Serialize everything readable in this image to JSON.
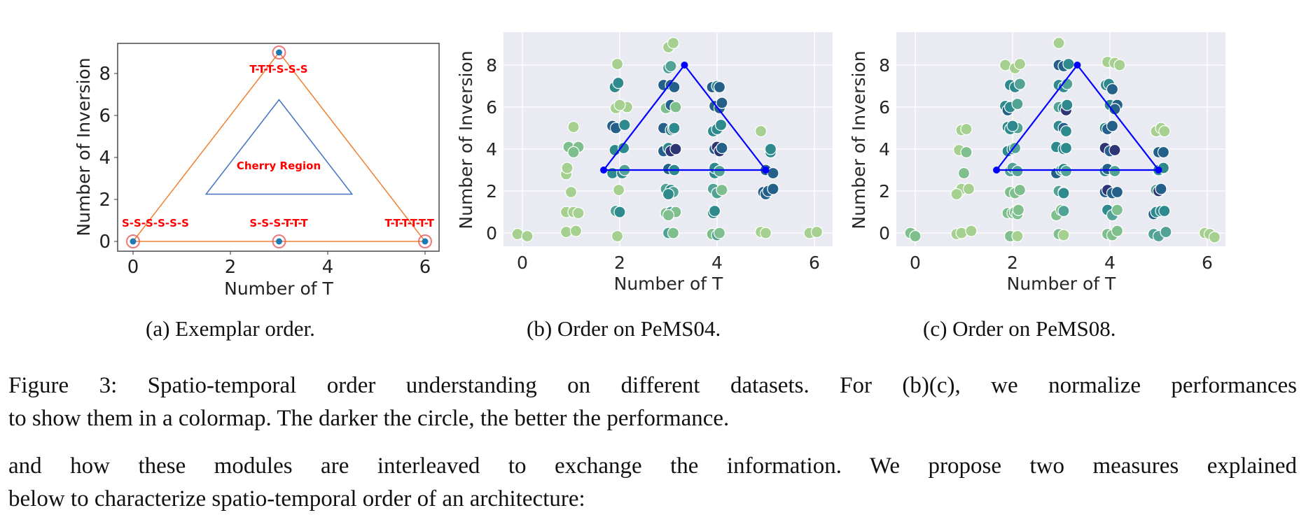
{
  "captions": {
    "a": "(a) Exemplar order.",
    "b": "(b) Order on PeMS04.",
    "c": "(c) Order on PeMS08."
  },
  "figure_caption": {
    "line1": "Figure 3: Spatio-temporal order understanding on different datasets. For (b)(c), we normalize performances",
    "line2": "to show them in a colormap. The darker the circle, the better the performance."
  },
  "body_text": {
    "line1": "and how these modules are interleaved to exchange the information. We propose two measures explained",
    "line2": "below to characterize spatio-temporal order of an architecture:"
  },
  "colors": {
    "panel_bg": "#eaeaf2",
    "grid": "#ffffff",
    "orange": "#f08030",
    "blue_outline": "#4472c4",
    "label_red": "#ff0000",
    "triangle_blue": "#0000ff",
    "colormap": [
      "#a5d090",
      "#7fbf8e",
      "#52a395",
      "#2f8a8e",
      "#25608a",
      "#2d3575"
    ]
  },
  "chart_data": [
    {
      "id": "a",
      "type": "scatter",
      "title": "(a) Exemplar order.",
      "xlabel": "Number of T",
      "ylabel": "Number of Inversion",
      "xticks": [
        0,
        2,
        4,
        6
      ],
      "yticks": [
        0,
        2,
        4,
        6,
        8
      ],
      "xlim": [
        -0.3,
        6.3
      ],
      "ylim": [
        -0.5,
        9.5
      ],
      "grid": false,
      "points": [
        {
          "x": 0,
          "y": 0,
          "label": "S-S-S-S-S-S"
        },
        {
          "x": 3,
          "y": 0,
          "label": "S-S-S-T-T-T"
        },
        {
          "x": 6,
          "y": 0,
          "label": "T-T-T-T-T-T"
        },
        {
          "x": 3,
          "y": 9,
          "label": "T-T-T-S-S-S"
        }
      ],
      "outer_triangle": [
        [
          0,
          0
        ],
        [
          3,
          9
        ],
        [
          6,
          0
        ]
      ],
      "inner_triangle": [
        [
          1.5,
          2.25
        ],
        [
          3,
          6.75
        ],
        [
          4.5,
          2.25
        ]
      ],
      "annotation": "Cherry Region"
    },
    {
      "id": "b",
      "type": "scatter",
      "title": "(b) Order on PeMS04.",
      "xlabel": "Number of T",
      "ylabel": "Number of Inversion",
      "xticks": [
        0,
        2,
        4,
        6
      ],
      "yticks": [
        0,
        2,
        4,
        6,
        8
      ],
      "xlim": [
        -0.4,
        6.4
      ],
      "ylim": [
        -0.6,
        9.6
      ],
      "grid": true,
      "triangle": [
        [
          1.67,
          3
        ],
        [
          3.33,
          8
        ],
        [
          5,
          3
        ]
      ],
      "color_meaning": "darker = better normalized performance (0 light .. 5 dark)",
      "points": [
        [
          -0.1,
          -0.05,
          0
        ],
        [
          0.1,
          -0.15,
          0
        ],
        [
          0.9,
          0.05,
          0
        ],
        [
          1.1,
          0.1,
          0
        ],
        [
          0.9,
          1.0,
          0
        ],
        [
          1.05,
          1.0,
          0
        ],
        [
          1.15,
          0.95,
          0
        ],
        [
          1.0,
          1.95,
          0
        ],
        [
          0.9,
          2.8,
          0
        ],
        [
          0.92,
          3.1,
          0
        ],
        [
          0.95,
          4.1,
          1
        ],
        [
          1.15,
          4.1,
          1
        ],
        [
          1.05,
          3.85,
          1
        ],
        [
          1.05,
          5.05,
          0
        ],
        [
          1.95,
          -0.15,
          0
        ],
        [
          1.92,
          1.05,
          2
        ],
        [
          2.0,
          1.0,
          3
        ],
        [
          1.98,
          2.05,
          0
        ],
        [
          1.85,
          2.85,
          3
        ],
        [
          2.05,
          2.85,
          3
        ],
        [
          2.1,
          3.0,
          2
        ],
        [
          1.9,
          3.95,
          3
        ],
        [
          2.08,
          4.05,
          3
        ],
        [
          1.85,
          5.1,
          4
        ],
        [
          1.92,
          5.0,
          4
        ],
        [
          2.1,
          5.15,
          3
        ],
        [
          1.92,
          5.95,
          0
        ],
        [
          2.15,
          6.0,
          0
        ],
        [
          2.0,
          6.1,
          0
        ],
        [
          1.9,
          6.95,
          3
        ],
        [
          1.97,
          7.15,
          3
        ],
        [
          1.95,
          8.05,
          0
        ],
        [
          3.0,
          0.0,
          2
        ],
        [
          3.1,
          0.0,
          1
        ],
        [
          2.95,
          0.95,
          1
        ],
        [
          3.05,
          1.0,
          2
        ],
        [
          3.15,
          1.0,
          1
        ],
        [
          3.0,
          0.85,
          1
        ],
        [
          2.95,
          2.1,
          2
        ],
        [
          3.05,
          2.05,
          3
        ],
        [
          3.1,
          1.95,
          2
        ],
        [
          3.0,
          1.85,
          3
        ],
        [
          3.0,
          3.05,
          4
        ],
        [
          3.12,
          3.0,
          3
        ],
        [
          2.9,
          3.9,
          4
        ],
        [
          3.0,
          4.05,
          3
        ],
        [
          3.05,
          3.9,
          5
        ],
        [
          3.15,
          4.0,
          5
        ],
        [
          2.9,
          5.0,
          4
        ],
        [
          3.05,
          4.9,
          3
        ],
        [
          3.1,
          4.95,
          4
        ],
        [
          3.12,
          5.0,
          3
        ],
        [
          2.95,
          5.95,
          1
        ],
        [
          3.05,
          6.1,
          4
        ],
        [
          3.15,
          6.0,
          1
        ],
        [
          2.9,
          7.05,
          4
        ],
        [
          3.05,
          7.05,
          4
        ],
        [
          3.12,
          6.95,
          4
        ],
        [
          3.0,
          7.85,
          2
        ],
        [
          3.05,
          7.95,
          2
        ],
        [
          3.0,
          8.85,
          0
        ],
        [
          3.1,
          9.05,
          0
        ],
        [
          3.9,
          -0.05,
          1
        ],
        [
          4.0,
          -0.1,
          2
        ],
        [
          4.05,
          0.0,
          1
        ],
        [
          3.92,
          0.95,
          3
        ],
        [
          3.95,
          1.05,
          3
        ],
        [
          3.92,
          2.1,
          2
        ],
        [
          4.0,
          1.9,
          2
        ],
        [
          4.1,
          2.05,
          1
        ],
        [
          3.95,
          2.85,
          3
        ],
        [
          3.95,
          3.1,
          3
        ],
        [
          4.05,
          2.95,
          2
        ],
        [
          3.95,
          4.0,
          4
        ],
        [
          4.0,
          4.1,
          5
        ],
        [
          4.05,
          3.9,
          5
        ],
        [
          4.1,
          4.05,
          4
        ],
        [
          3.92,
          4.85,
          3
        ],
        [
          4.0,
          4.95,
          3
        ],
        [
          4.08,
          5.15,
          3
        ],
        [
          3.95,
          6.05,
          4
        ],
        [
          4.05,
          5.95,
          4
        ],
        [
          4.1,
          6.2,
          4
        ],
        [
          3.9,
          6.95,
          4
        ],
        [
          4.0,
          7.0,
          3
        ],
        [
          4.05,
          6.95,
          4
        ],
        [
          4.9,
          0.05,
          0
        ],
        [
          5.0,
          0.0,
          0
        ],
        [
          4.9,
          4.85,
          0
        ],
        [
          4.95,
          1.95,
          4
        ],
        [
          5.0,
          1.85,
          4
        ],
        [
          5.05,
          2.0,
          4
        ],
        [
          5.15,
          2.1,
          4
        ],
        [
          5.0,
          3.0,
          4
        ],
        [
          5.15,
          2.85,
          4
        ],
        [
          5.1,
          3.85,
          3
        ],
        [
          5.1,
          4.0,
          3
        ],
        [
          5.9,
          0.0,
          0
        ],
        [
          6.05,
          0.05,
          0
        ]
      ]
    },
    {
      "id": "c",
      "type": "scatter",
      "title": "(c) Order on PeMS08.",
      "xlabel": "Number of T",
      "ylabel": "Number of Inversion",
      "xticks": [
        0,
        2,
        4,
        6
      ],
      "yticks": [
        0,
        2,
        4,
        6,
        8
      ],
      "xlim": [
        -0.4,
        6.4
      ],
      "ylim": [
        -0.6,
        9.6
      ],
      "grid": true,
      "triangle": [
        [
          1.67,
          3
        ],
        [
          3.33,
          8
        ],
        [
          5,
          3
        ]
      ],
      "color_meaning": "darker = better normalized performance (0 light .. 5 dark)",
      "points": [
        [
          -0.1,
          0.0,
          1
        ],
        [
          0.0,
          -0.15,
          1
        ],
        [
          0.85,
          -0.05,
          0
        ],
        [
          0.95,
          0.0,
          0
        ],
        [
          1.15,
          0.1,
          0
        ],
        [
          0.9,
          1.95,
          0
        ],
        [
          0.95,
          2.1,
          0
        ],
        [
          1.1,
          2.1,
          0
        ],
        [
          0.85,
          1.85,
          0
        ],
        [
          1.0,
          2.85,
          1
        ],
        [
          0.9,
          3.95,
          0
        ],
        [
          1.05,
          3.85,
          1
        ],
        [
          0.95,
          4.9,
          0
        ],
        [
          1.05,
          4.95,
          0
        ],
        [
          1.95,
          -0.15,
          1
        ],
        [
          2.1,
          -0.15,
          0
        ],
        [
          1.9,
          0.95,
          1
        ],
        [
          2.0,
          0.95,
          1
        ],
        [
          2.05,
          1.0,
          1
        ],
        [
          2.1,
          0.9,
          1
        ],
        [
          2.12,
          1.1,
          1
        ],
        [
          1.95,
          1.95,
          1
        ],
        [
          2.05,
          1.9,
          1
        ],
        [
          2.15,
          2.05,
          1
        ],
        [
          1.95,
          2.95,
          2
        ],
        [
          2.0,
          3.1,
          2
        ],
        [
          2.1,
          2.95,
          2
        ],
        [
          1.9,
          3.9,
          3
        ],
        [
          2.0,
          4.0,
          3
        ],
        [
          2.05,
          4.05,
          2
        ],
        [
          1.9,
          5.05,
          3
        ],
        [
          1.95,
          4.95,
          3
        ],
        [
          2.1,
          5.0,
          2
        ],
        [
          2.0,
          5.1,
          3
        ],
        [
          1.85,
          6.05,
          3
        ],
        [
          1.9,
          5.85,
          4
        ],
        [
          1.95,
          6.0,
          3
        ],
        [
          2.1,
          6.15,
          2
        ],
        [
          1.95,
          7.05,
          3
        ],
        [
          2.05,
          6.95,
          3
        ],
        [
          2.15,
          7.1,
          2
        ],
        [
          1.85,
          8.0,
          0
        ],
        [
          2.05,
          7.85,
          0
        ],
        [
          2.15,
          8.05,
          0
        ],
        [
          2.95,
          -0.05,
          1
        ],
        [
          3.05,
          -0.1,
          0
        ],
        [
          2.9,
          0.85,
          1
        ],
        [
          3.0,
          1.1,
          1
        ],
        [
          3.05,
          1.05,
          2
        ],
        [
          2.95,
          2.0,
          2
        ],
        [
          3.05,
          1.95,
          2
        ],
        [
          3.05,
          1.9,
          3
        ],
        [
          2.9,
          2.85,
          4
        ],
        [
          3.0,
          3.0,
          2
        ],
        [
          3.05,
          3.05,
          3
        ],
        [
          3.1,
          2.95,
          2
        ],
        [
          2.9,
          4.1,
          3
        ],
        [
          3.05,
          4.0,
          3
        ],
        [
          3.1,
          4.05,
          3
        ],
        [
          2.95,
          5.1,
          3
        ],
        [
          3.05,
          5.0,
          4
        ],
        [
          3.1,
          4.85,
          3
        ],
        [
          2.95,
          6.0,
          2
        ],
        [
          3.05,
          5.95,
          3
        ],
        [
          3.1,
          5.85,
          5
        ],
        [
          3.12,
          6.1,
          3
        ],
        [
          2.95,
          7.05,
          3
        ],
        [
          3.05,
          6.95,
          3
        ],
        [
          3.12,
          7.1,
          2
        ],
        [
          2.95,
          8.0,
          4
        ],
        [
          3.05,
          7.95,
          4
        ],
        [
          3.15,
          8.05,
          3
        ],
        [
          2.95,
          9.05,
          0
        ],
        [
          3.95,
          -0.05,
          1
        ],
        [
          4.05,
          -0.1,
          1
        ],
        [
          4.15,
          0.1,
          1
        ],
        [
          3.95,
          1.1,
          3
        ],
        [
          4.05,
          0.85,
          2
        ],
        [
          4.15,
          1.1,
          1
        ],
        [
          3.9,
          1.95,
          4
        ],
        [
          3.95,
          2.05,
          5
        ],
        [
          4.05,
          1.9,
          4
        ],
        [
          4.15,
          1.95,
          4
        ],
        [
          3.9,
          2.95,
          3
        ],
        [
          3.95,
          3.05,
          4
        ],
        [
          4.1,
          2.95,
          2
        ],
        [
          3.9,
          4.05,
          5
        ],
        [
          4.0,
          3.9,
          4
        ],
        [
          4.1,
          3.95,
          5
        ],
        [
          3.9,
          5.0,
          3
        ],
        [
          3.95,
          4.95,
          4
        ],
        [
          4.05,
          5.1,
          4
        ],
        [
          4.0,
          6.1,
          3
        ],
        [
          4.15,
          6.1,
          4
        ],
        [
          4.1,
          5.9,
          4
        ],
        [
          3.92,
          7.05,
          3
        ],
        [
          3.98,
          7.1,
          3
        ],
        [
          4.05,
          6.85,
          4
        ],
        [
          3.95,
          8.15,
          0
        ],
        [
          4.1,
          8.1,
          0
        ],
        [
          4.2,
          8.0,
          0
        ],
        [
          4.9,
          -0.05,
          2
        ],
        [
          5.0,
          -0.15,
          2
        ],
        [
          5.15,
          0.05,
          2
        ],
        [
          4.9,
          0.9,
          4
        ],
        [
          4.95,
          1.0,
          3
        ],
        [
          5.05,
          1.05,
          3
        ],
        [
          5.12,
          1.05,
          3
        ],
        [
          4.95,
          2.05,
          2
        ],
        [
          5.0,
          2.0,
          5
        ],
        [
          5.05,
          2.1,
          4
        ],
        [
          5.0,
          2.95,
          3
        ],
        [
          5.0,
          3.0,
          3
        ],
        [
          5.1,
          3.1,
          3
        ],
        [
          5.0,
          3.85,
          4
        ],
        [
          5.1,
          3.85,
          4
        ],
        [
          4.95,
          4.85,
          0
        ],
        [
          5.05,
          5.0,
          0
        ],
        [
          5.12,
          4.85,
          0
        ],
        [
          5.95,
          0.0,
          0
        ],
        [
          6.05,
          -0.05,
          0
        ],
        [
          6.15,
          -0.2,
          0
        ]
      ]
    }
  ]
}
